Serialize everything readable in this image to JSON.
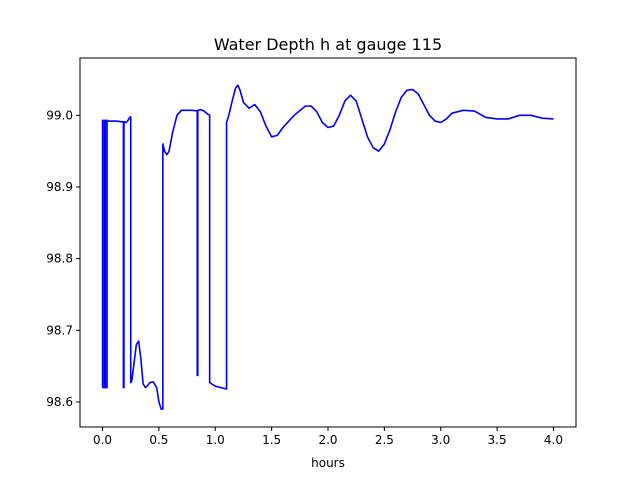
{
  "chart_data": {
    "type": "line",
    "title": "Water Depth h at gauge 115",
    "xlabel": "hours",
    "ylabel": "",
    "xlim": [
      -0.2,
      4.2
    ],
    "ylim": [
      98.565,
      99.08
    ],
    "grid": false,
    "legend": "none",
    "x_ticks": [
      0.0,
      0.5,
      1.0,
      1.5,
      2.0,
      2.5,
      3.0,
      3.5,
      4.0
    ],
    "x_tick_labels": [
      "0.0",
      "0.5",
      "1.0",
      "1.5",
      "2.0",
      "2.5",
      "3.0",
      "3.5",
      "4.0"
    ],
    "y_ticks": [
      98.6,
      98.7,
      98.8,
      98.9,
      99.0
    ],
    "y_tick_labels": [
      "98.6",
      "98.7",
      "98.8",
      "98.9",
      "99.0"
    ],
    "series": [
      {
        "color": "#0000ff",
        "x": [
          0.0,
          0.0,
          0.005,
          0.005,
          0.02,
          0.02,
          0.025,
          0.025,
          0.04,
          0.04,
          0.045,
          0.045,
          0.08,
          0.12,
          0.17,
          0.185,
          0.185,
          0.19,
          0.19,
          0.21,
          0.225,
          0.235,
          0.24,
          0.25,
          0.25,
          0.26,
          0.28,
          0.3,
          0.32,
          0.34,
          0.36,
          0.38,
          0.4,
          0.42,
          0.45,
          0.48,
          0.5,
          0.52,
          0.535,
          0.535,
          0.55,
          0.57,
          0.59,
          0.62,
          0.66,
          0.7,
          0.75,
          0.8,
          0.84,
          0.84,
          0.845,
          0.845,
          0.87,
          0.9,
          0.93,
          0.95,
          0.95,
          1.0,
          1.05,
          1.1,
          1.1,
          1.12,
          1.15,
          1.18,
          1.2,
          1.22,
          1.25,
          1.3,
          1.35,
          1.4,
          1.45,
          1.5,
          1.55,
          1.6,
          1.7,
          1.8,
          1.85,
          1.9,
          1.95,
          2.0,
          2.05,
          2.1,
          2.15,
          2.2,
          2.25,
          2.3,
          2.35,
          2.4,
          2.45,
          2.5,
          2.55,
          2.6,
          2.65,
          2.7,
          2.75,
          2.8,
          2.85,
          2.9,
          2.95,
          3.0,
          3.05,
          3.1,
          3.2,
          3.3,
          3.4,
          3.5,
          3.6,
          3.7,
          3.8,
          3.9,
          4.0
        ],
        "y": [
          98.62,
          98.993,
          98.993,
          98.62,
          98.62,
          98.993,
          98.993,
          98.62,
          98.62,
          98.993,
          98.993,
          98.992,
          98.992,
          98.992,
          98.991,
          98.991,
          98.62,
          98.62,
          98.991,
          98.99,
          98.993,
          98.995,
          98.997,
          98.998,
          98.627,
          98.63,
          98.655,
          98.68,
          98.685,
          98.66,
          98.625,
          98.62,
          98.623,
          98.627,
          98.628,
          98.62,
          98.6,
          98.59,
          98.59,
          98.96,
          98.95,
          98.945,
          98.95,
          98.975,
          99.0,
          99.007,
          99.007,
          99.007,
          99.006,
          98.637,
          98.637,
          99.007,
          99.008,
          99.006,
          99.002,
          99.0,
          98.627,
          98.622,
          98.62,
          98.618,
          98.99,
          99.0,
          99.02,
          99.038,
          99.042,
          99.035,
          99.018,
          99.01,
          99.015,
          99.005,
          98.985,
          98.97,
          98.972,
          98.983,
          99.0,
          99.013,
          99.013,
          99.005,
          98.99,
          98.983,
          98.985,
          99.0,
          99.02,
          99.028,
          99.02,
          98.995,
          98.97,
          98.955,
          98.95,
          98.96,
          98.98,
          99.005,
          99.025,
          99.035,
          99.036,
          99.03,
          99.015,
          99.0,
          98.992,
          98.99,
          98.995,
          99.003,
          99.007,
          99.006,
          98.997,
          98.995,
          98.995,
          99.0,
          99.0,
          98.996,
          98.995
        ]
      }
    ]
  }
}
